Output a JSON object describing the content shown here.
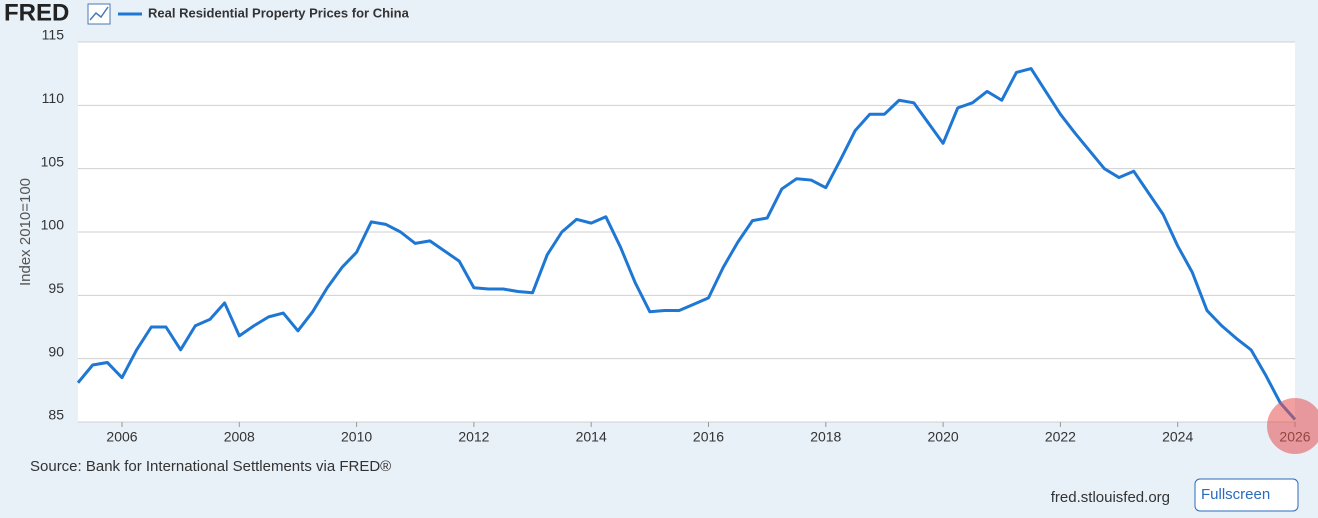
{
  "header": {
    "logo": "FRED"
  },
  "footer": {
    "site": "fred.stlouisfed.org",
    "button": "Fullscreen"
  },
  "chart_data": {
    "type": "line",
    "title": "Real Residential Property Prices for China",
    "y_label": "Index 2010=100",
    "source": "Source: Bank for International Settlements via FRED®",
    "x": [
      2005.25,
      2005.5,
      2005.75,
      2006,
      2006.25,
      2006.5,
      2006.75,
      2007,
      2007.25,
      2007.5,
      2007.75,
      2008,
      2008.25,
      2008.5,
      2008.75,
      2009,
      2009.25,
      2009.5,
      2009.75,
      2010,
      2010.25,
      2010.5,
      2010.75,
      2011,
      2011.25,
      2011.5,
      2011.75,
      2012,
      2012.25,
      2012.5,
      2012.75,
      2013,
      2013.25,
      2013.5,
      2013.75,
      2014,
      2014.25,
      2014.5,
      2014.75,
      2015,
      2015.25,
      2015.5,
      2015.75,
      2016,
      2016.25,
      2016.5,
      2016.75,
      2017,
      2017.25,
      2017.5,
      2017.75,
      2018,
      2018.25,
      2018.5,
      2018.75,
      2019,
      2019.25,
      2019.5,
      2019.75,
      2020,
      2020.25,
      2020.5,
      2020.75,
      2021,
      2021.25,
      2021.5,
      2021.75,
      2022,
      2022.25,
      2022.5,
      2022.75,
      2023,
      2023.25,
      2023.5,
      2023.75,
      2024,
      2024.25,
      2024.5,
      2024.75,
      2025,
      2025.25,
      2025.5,
      2025.75,
      2026
    ],
    "series": [
      {
        "name": "Real Residential Property Prices for China",
        "color": "#1f77d4",
        "values": [
          88.1,
          89.5,
          89.7,
          88.5,
          90.7,
          92.5,
          92.5,
          90.7,
          92.6,
          93.1,
          94.4,
          91.8,
          92.6,
          93.3,
          93.6,
          92.2,
          93.7,
          95.6,
          97.2,
          98.4,
          100.8,
          100.6,
          100.0,
          99.1,
          99.3,
          98.5,
          97.7,
          95.6,
          95.5,
          95.5,
          95.3,
          95.2,
          98.2,
          100.0,
          101.0,
          100.7,
          101.2,
          98.8,
          96.0,
          93.7,
          93.8,
          93.8,
          94.3,
          94.8,
          97.2,
          99.2,
          100.9,
          101.1,
          103.4,
          104.2,
          104.1,
          103.5,
          105.7,
          108.0,
          109.3,
          109.3,
          110.4,
          110.2,
          108.6,
          107.0,
          109.8,
          110.2,
          111.1,
          110.4,
          112.6,
          112.9,
          111.1,
          109.3,
          107.8,
          106.4,
          105.0,
          104.3,
          104.8,
          103.1,
          101.4,
          98.9,
          96.8,
          93.8,
          92.6,
          91.6,
          90.7,
          88.7,
          86.5,
          85.2
        ]
      }
    ],
    "xlim": [
      2005.25,
      2026
    ],
    "xticks": [
      2006,
      2008,
      2010,
      2012,
      2014,
      2016,
      2018,
      2020,
      2022,
      2024,
      2026
    ],
    "ylim": [
      85,
      115
    ],
    "yticks": [
      85,
      90,
      95,
      100,
      105,
      110,
      115
    ],
    "grid": true
  }
}
